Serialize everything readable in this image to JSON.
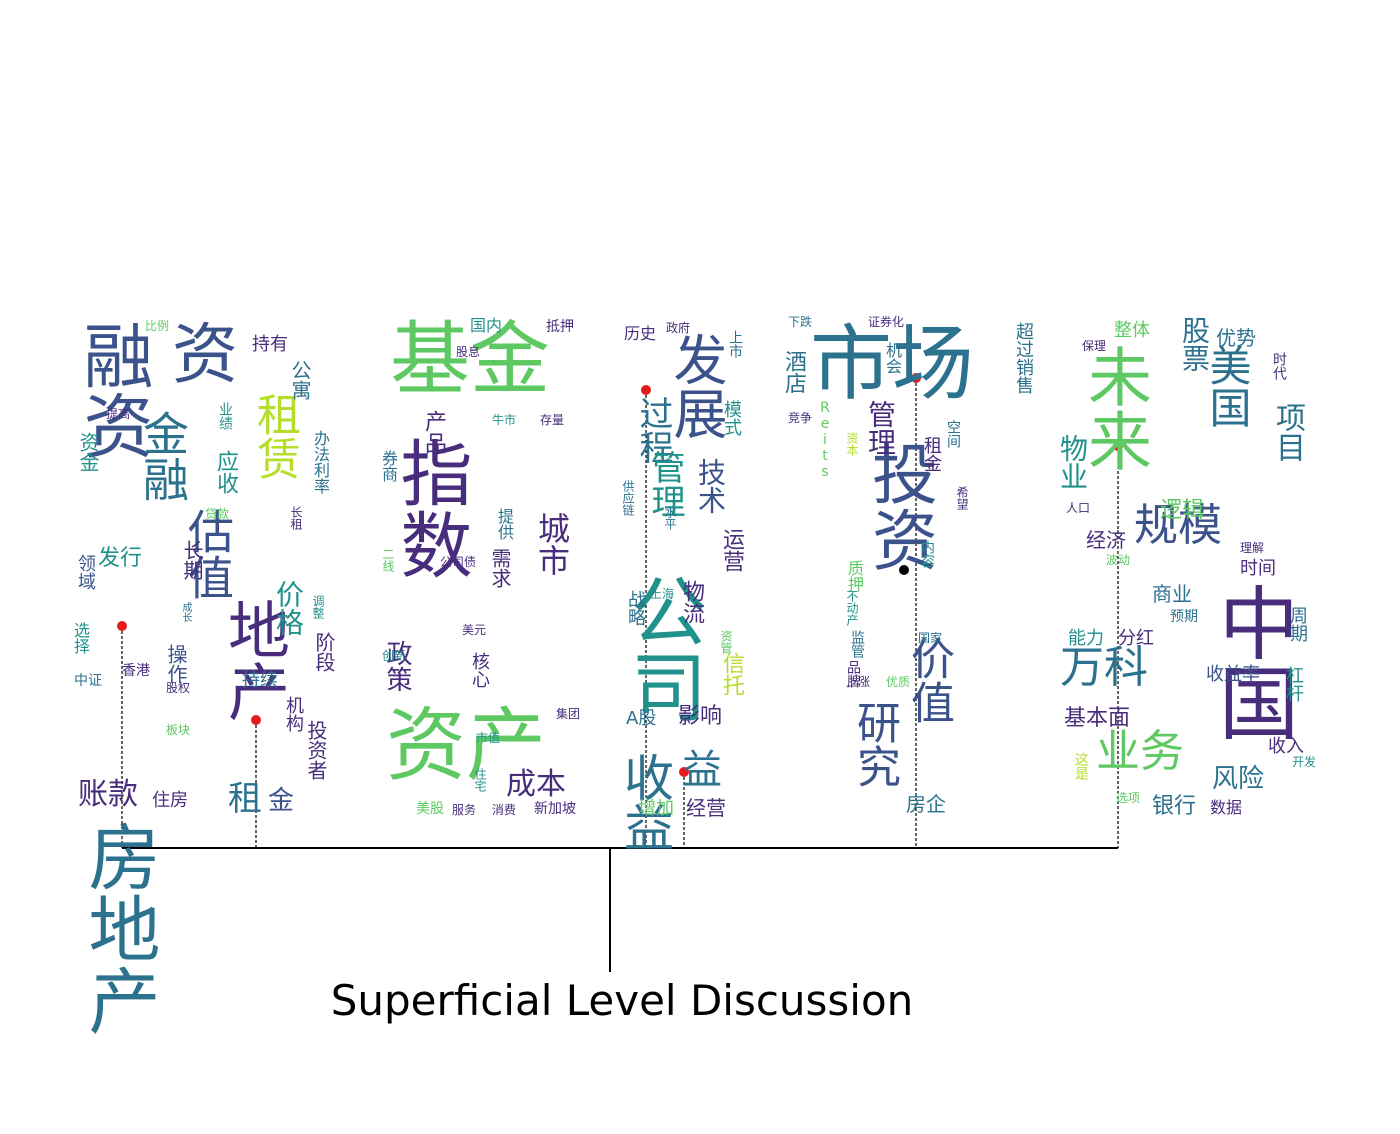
{
  "caption": "Superficial Level Discussion",
  "colors": {
    "dark": "#472d7b",
    "blue": "#3b528b",
    "teal": "#2c728e",
    "green": "#21918c",
    "lime": "#5ec962",
    "yellow": "#b5de2b",
    "marker": "#e41a1c",
    "line": "#000000"
  },
  "clouds": [
    {
      "name": "cloud-1",
      "words": [
        [
          "房地产",
          72,
          82,
          820,
          "teal",
          "v"
        ],
        [
          "融资",
          70,
          78,
          320,
          "blue",
          "v"
        ],
        [
          "资",
          66,
          172,
          322,
          "blue",
          "h"
        ],
        [
          "金融",
          46,
          140,
          410,
          "teal",
          "v"
        ],
        [
          "估值",
          46,
          185,
          508,
          "blue",
          "v"
        ],
        [
          "租赁",
          44,
          252,
          392,
          "yellow",
          "v"
        ],
        [
          "地产",
          62,
          222,
          598,
          "dark",
          "v"
        ],
        [
          "价格",
          28,
          274,
          580,
          "green",
          "v"
        ],
        [
          "账款",
          30,
          78,
          780,
          "dark",
          "h"
        ],
        [
          "住房",
          18,
          152,
          792,
          "dark",
          "h"
        ],
        [
          "应收",
          22,
          214,
          450,
          "green",
          "v"
        ],
        [
          "持有",
          18,
          252,
          336,
          "dark",
          "h"
        ],
        [
          "公寓",
          20,
          290,
          360,
          "teal",
          "v"
        ],
        [
          "比例",
          12,
          145,
          320,
          "lime",
          "h"
        ],
        [
          "提高",
          12,
          106,
          408,
          "dark",
          "h"
        ],
        [
          "业绩",
          14,
          218,
          402,
          "green",
          "v"
        ],
        [
          "办法利率",
          16,
          312,
          430,
          "teal",
          "v"
        ],
        [
          "资金",
          20,
          78,
          432,
          "green",
          "v"
        ],
        [
          "长租",
          12,
          290,
          506,
          "dark",
          "v"
        ],
        [
          "贷款",
          12,
          205,
          508,
          "lime",
          "h"
        ],
        [
          "发行",
          22,
          98,
          548,
          "green",
          "h"
        ],
        [
          "长期",
          20,
          182,
          540,
          "dark",
          "v"
        ],
        [
          "领域",
          18,
          76,
          554,
          "blue",
          "v"
        ],
        [
          "选择",
          16,
          72,
          622,
          "green",
          "v"
        ],
        [
          "操作",
          20,
          166,
          644,
          "blue",
          "v"
        ],
        [
          "成长",
          10,
          180,
          602,
          "teal",
          "v"
        ],
        [
          "调整",
          12,
          312,
          595,
          "green",
          "v"
        ],
        [
          "香港",
          14,
          122,
          664,
          "dark",
          "h"
        ],
        [
          "股权",
          12,
          166,
          682,
          "dark",
          "h"
        ],
        [
          "中证",
          14,
          74,
          674,
          "teal",
          "h"
        ],
        [
          "持续",
          18,
          242,
          672,
          "teal",
          "h"
        ],
        [
          "机构",
          18,
          284,
          696,
          "dark",
          "v"
        ],
        [
          "阶段",
          20,
          314,
          632,
          "dark",
          "v"
        ],
        [
          "投资者",
          20,
          306,
          720,
          "dark",
          "v"
        ],
        [
          "板块",
          12,
          166,
          724,
          "lime",
          "h"
        ],
        [
          "租",
          34,
          228,
          782,
          "teal",
          "h"
        ],
        [
          "金",
          26,
          268,
          788,
          "blue",
          "h"
        ]
      ]
    },
    {
      "name": "cloud-2",
      "words": [
        [
          "基金",
          80,
          390,
          320,
          "lime",
          "h"
        ],
        [
          "指数",
          72,
          394,
          436,
          "dark",
          "v"
        ],
        [
          "资产",
          80,
          386,
          706,
          "lime",
          "h"
        ],
        [
          "城市",
          32,
          536,
          512,
          "dark",
          "v"
        ],
        [
          "政策",
          26,
          384,
          640,
          "dark",
          "v"
        ],
        [
          "成本",
          30,
          506,
          770,
          "dark",
          "h"
        ],
        [
          "国内",
          16,
          470,
          318,
          "green",
          "h"
        ],
        [
          "抵押",
          14,
          546,
          320,
          "dark",
          "h"
        ],
        [
          "股息",
          12,
          456,
          346,
          "dark",
          "h"
        ],
        [
          "产品",
          22,
          422,
          410,
          "dark",
          "v"
        ],
        [
          "牛市",
          12,
          492,
          414,
          "green",
          "h"
        ],
        [
          "存量",
          12,
          540,
          414,
          "dark",
          "h"
        ],
        [
          "券商",
          16,
          380,
          450,
          "teal",
          "v"
        ],
        [
          "提供",
          16,
          496,
          508,
          "teal",
          "v"
        ],
        [
          "需求",
          20,
          490,
          548,
          "dark",
          "v"
        ],
        [
          "二线",
          12,
          382,
          548,
          "lime",
          "v"
        ],
        [
          "公司债",
          12,
          440,
          556,
          "dark",
          "h"
        ],
        [
          "核心",
          18,
          470,
          652,
          "dark",
          "v"
        ],
        [
          "美元",
          12,
          462,
          624,
          "dark",
          "h"
        ],
        [
          "创新",
          12,
          382,
          650,
          "green",
          "h"
        ],
        [
          "集团",
          12,
          556,
          708,
          "dark",
          "h"
        ],
        [
          "市值",
          12,
          476,
          732,
          "green",
          "h"
        ],
        [
          "住宅",
          12,
          474,
          768,
          "green",
          "v"
        ],
        [
          "美股",
          14,
          416,
          802,
          "lime",
          "h"
        ],
        [
          "服务",
          12,
          452,
          804,
          "dark",
          "h"
        ],
        [
          "消费",
          12,
          492,
          804,
          "dark",
          "h"
        ],
        [
          "新加坡",
          14,
          534,
          802,
          "dark",
          "h"
        ]
      ]
    },
    {
      "name": "cloud-3",
      "words": [
        [
          "公司",
          76,
          624,
          572,
          "green",
          "v"
        ],
        [
          "发展",
          54,
          668,
          332,
          "blue",
          "v"
        ],
        [
          "过程",
          34,
          636,
          396,
          "teal",
          "v"
        ],
        [
          "历史",
          16,
          624,
          326,
          "dark",
          "h"
        ],
        [
          "政府",
          12,
          666,
          322,
          "dark",
          "h"
        ],
        [
          "上市",
          14,
          728,
          330,
          "teal",
          "v"
        ],
        [
          "管理",
          34,
          648,
          450,
          "green",
          "v"
        ],
        [
          "技术",
          28,
          696,
          458,
          "blue",
          "v"
        ],
        [
          "模式",
          18,
          722,
          400,
          "green",
          "v"
        ],
        [
          "供应链",
          12,
          622,
          480,
          "teal",
          "v"
        ],
        [
          "水平",
          12,
          664,
          506,
          "teal",
          "v"
        ],
        [
          "运营",
          22,
          720,
          528,
          "dark",
          "v"
        ],
        [
          "物流",
          22,
          680,
          580,
          "dark",
          "v"
        ],
        [
          "战略",
          18,
          626,
          590,
          "teal",
          "v"
        ],
        [
          "上海",
          12,
          650,
          588,
          "green",
          "h"
        ],
        [
          "资管",
          12,
          720,
          630,
          "lime",
          "v"
        ],
        [
          "信托",
          22,
          720,
          652,
          "yellow",
          "v"
        ],
        [
          "A股",
          18,
          626,
          710,
          "teal",
          "h"
        ],
        [
          "影响",
          22,
          678,
          706,
          "dark",
          "h"
        ],
        [
          "收益",
          50,
          620,
          752,
          "teal",
          "v"
        ],
        [
          "益",
          40,
          682,
          750,
          "teal",
          "h"
        ],
        [
          "增加",
          18,
          638,
          800,
          "lime",
          "h"
        ],
        [
          "经营",
          20,
          686,
          798,
          "dark",
          "h"
        ]
      ]
    },
    {
      "name": "cloud-4",
      "words": [
        [
          "市场",
          82,
          810,
          324,
          "teal",
          "h"
        ],
        [
          "投资",
          66,
          866,
          440,
          "blue",
          "v"
        ],
        [
          "研究",
          44,
          852,
          700,
          "blue",
          "v"
        ],
        [
          "价值",
          44,
          906,
          636,
          "blue",
          "v"
        ],
        [
          "管理",
          28,
          866,
          400,
          "dark",
          "v"
        ],
        [
          "下跌",
          12,
          788,
          316,
          "teal",
          "h"
        ],
        [
          "证券化",
          12,
          868,
          316,
          "dark",
          "h"
        ],
        [
          "酒店",
          22,
          782,
          350,
          "teal",
          "v"
        ],
        [
          "机会",
          16,
          884,
          342,
          "teal",
          "v"
        ],
        [
          "超过销售",
          18,
          1014,
          322,
          "teal",
          "v"
        ],
        [
          "竞争",
          12,
          788,
          412,
          "dark",
          "h"
        ],
        [
          "Reits",
          14,
          818,
          400,
          "lime",
          "v"
        ],
        [
          "资本",
          12,
          846,
          432,
          "yellow",
          "v"
        ],
        [
          "租金",
          18,
          922,
          436,
          "dark",
          "v"
        ],
        [
          "空间",
          14,
          946,
          420,
          "teal",
          "v"
        ],
        [
          "希望",
          12,
          956,
          486,
          "dark",
          "v"
        ],
        [
          "内容",
          14,
          920,
          540,
          "green",
          "v"
        ],
        [
          "质押",
          16,
          846,
          560,
          "lime",
          "v"
        ],
        [
          "不动产",
          12,
          846,
          590,
          "green",
          "v"
        ],
        [
          "国家",
          12,
          918,
          632,
          "teal",
          "h"
        ],
        [
          "监管",
          14,
          850,
          630,
          "teal",
          "v"
        ],
        [
          "品牌",
          14,
          846,
          660,
          "dark",
          "v"
        ],
        [
          "上涨",
          12,
          846,
          676,
          "dark",
          "h"
        ],
        [
          "优质",
          12,
          886,
          676,
          "lime",
          "h"
        ],
        [
          "房企",
          20,
          906,
          794,
          "teal",
          "h"
        ]
      ]
    },
    {
      "name": "cloud-5",
      "words": [
        [
          "未来",
          64,
          1082,
          344,
          "lime",
          "v"
        ],
        [
          "中国",
          80,
          1212,
          582,
          "dark",
          "v"
        ],
        [
          "股票",
          28,
          1180,
          316,
          "teal",
          "v"
        ],
        [
          "美国",
          42,
          1206,
          344,
          "teal",
          "v"
        ],
        [
          "项目",
          30,
          1272,
          402,
          "teal",
          "v"
        ],
        [
          "规模",
          44,
          1134,
          504,
          "blue",
          "h"
        ],
        [
          "物业",
          28,
          1058,
          434,
          "green",
          "v"
        ],
        [
          "万科",
          44,
          1060,
          646,
          "teal",
          "h"
        ],
        [
          "业务",
          44,
          1096,
          730,
          "lime",
          "h"
        ],
        [
          "整体",
          18,
          1114,
          322,
          "lime",
          "h"
        ],
        [
          "保理",
          12,
          1082,
          340,
          "dark",
          "h"
        ],
        [
          "优势",
          20,
          1216,
          328,
          "teal",
          "h"
        ],
        [
          "时代",
          14,
          1272,
          352,
          "dark",
          "v"
        ],
        [
          "逻辑",
          22,
          1160,
          500,
          "lime",
          "h"
        ],
        [
          "人口",
          12,
          1066,
          502,
          "dark",
          "h"
        ],
        [
          "经济",
          20,
          1086,
          530,
          "dark",
          "h"
        ],
        [
          "波动",
          12,
          1106,
          554,
          "lime",
          "h"
        ],
        [
          "理解",
          12,
          1240,
          542,
          "dark",
          "h"
        ],
        [
          "时间",
          18,
          1240,
          560,
          "dark",
          "h"
        ],
        [
          "商业",
          20,
          1152,
          584,
          "teal",
          "h"
        ],
        [
          "预期",
          14,
          1170,
          610,
          "teal",
          "h"
        ],
        [
          "能力",
          18,
          1068,
          630,
          "green",
          "h"
        ],
        [
          "分红",
          18,
          1118,
          630,
          "dark",
          "h"
        ],
        [
          "周期",
          18,
          1288,
          606,
          "teal",
          "v"
        ],
        [
          "收益率",
          18,
          1206,
          666,
          "blue",
          "h"
        ],
        [
          "杠杆",
          18,
          1284,
          666,
          "green",
          "v"
        ],
        [
          "基本面",
          22,
          1064,
          708,
          "dark",
          "h"
        ],
        [
          "收入",
          18,
          1268,
          738,
          "dark",
          "h"
        ],
        [
          "这是",
          14,
          1074,
          752,
          "yellow",
          "v"
        ],
        [
          "开发",
          12,
          1292,
          756,
          "green",
          "h"
        ],
        [
          "风险",
          26,
          1212,
          766,
          "teal",
          "h"
        ],
        [
          "选项",
          12,
          1116,
          792,
          "lime",
          "h"
        ],
        [
          "银行",
          22,
          1152,
          796,
          "teal",
          "h"
        ],
        [
          "数据",
          16,
          1210,
          800,
          "dark",
          "h"
        ]
      ]
    }
  ]
}
